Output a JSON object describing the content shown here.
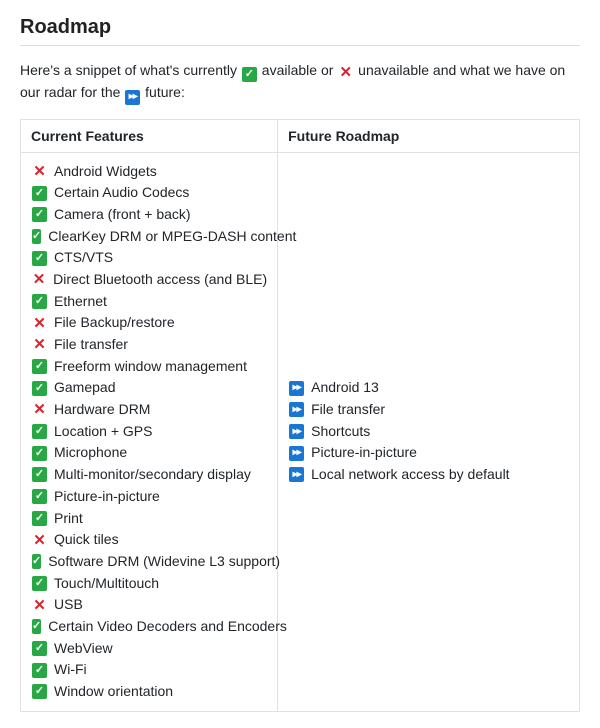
{
  "title": "Roadmap",
  "intro": {
    "part1": "Here's a snippet of what's currently ",
    "available": "available",
    "or": " or ",
    "unavailable": "unavailable",
    "part2": " and what we have on our radar for the ",
    "future": "future:"
  },
  "icons": {
    "check_glyph": "✓",
    "cross_glyph": "✕",
    "future_glyph": "▸▸"
  },
  "colors": {
    "check_bg": "#28a745",
    "cross_fg": "#d9232d",
    "future_bg": "#1976d2",
    "border": "#dee2e6",
    "text": "#212529"
  },
  "table": {
    "headers": {
      "current": "Current Features",
      "future": "Future Roadmap"
    },
    "current": [
      {
        "status": "cross",
        "label": "Android Widgets"
      },
      {
        "status": "check",
        "label": "Certain Audio Codecs"
      },
      {
        "status": "check",
        "label": "Camera (front + back)"
      },
      {
        "status": "check",
        "label": "ClearKey DRM or MPEG-DASH content"
      },
      {
        "status": "check",
        "label": "CTS/VTS"
      },
      {
        "status": "cross",
        "label": "Direct Bluetooth access (and BLE)"
      },
      {
        "status": "check",
        "label": "Ethernet"
      },
      {
        "status": "cross",
        "label": "File Backup/restore"
      },
      {
        "status": "cross",
        "label": "File transfer"
      },
      {
        "status": "check",
        "label": "Freeform window management"
      },
      {
        "status": "check",
        "label": "Gamepad"
      },
      {
        "status": "cross",
        "label": "Hardware DRM"
      },
      {
        "status": "check",
        "label": "Location + GPS"
      },
      {
        "status": "check",
        "label": "Microphone"
      },
      {
        "status": "check",
        "label": "Multi-monitor/secondary display"
      },
      {
        "status": "check",
        "label": "Picture-in-picture"
      },
      {
        "status": "check",
        "label": "Print"
      },
      {
        "status": "cross",
        "label": "Quick tiles"
      },
      {
        "status": "check",
        "label": "Software DRM (Widevine L3 support)"
      },
      {
        "status": "check",
        "label": "Touch/Multitouch"
      },
      {
        "status": "cross",
        "label": "USB"
      },
      {
        "status": "check",
        "label": "Certain Video Decoders and Encoders"
      },
      {
        "status": "check",
        "label": "WebView"
      },
      {
        "status": "check",
        "label": "Wi-Fi"
      },
      {
        "status": "check",
        "label": "Window orientation"
      }
    ],
    "future": [
      {
        "status": "future",
        "label": "Android 13"
      },
      {
        "status": "future",
        "label": "File transfer"
      },
      {
        "status": "future",
        "label": "Shortcuts"
      },
      {
        "status": "future",
        "label": "Picture-in-picture"
      },
      {
        "status": "future",
        "label": "Local network access by default"
      }
    ]
  }
}
